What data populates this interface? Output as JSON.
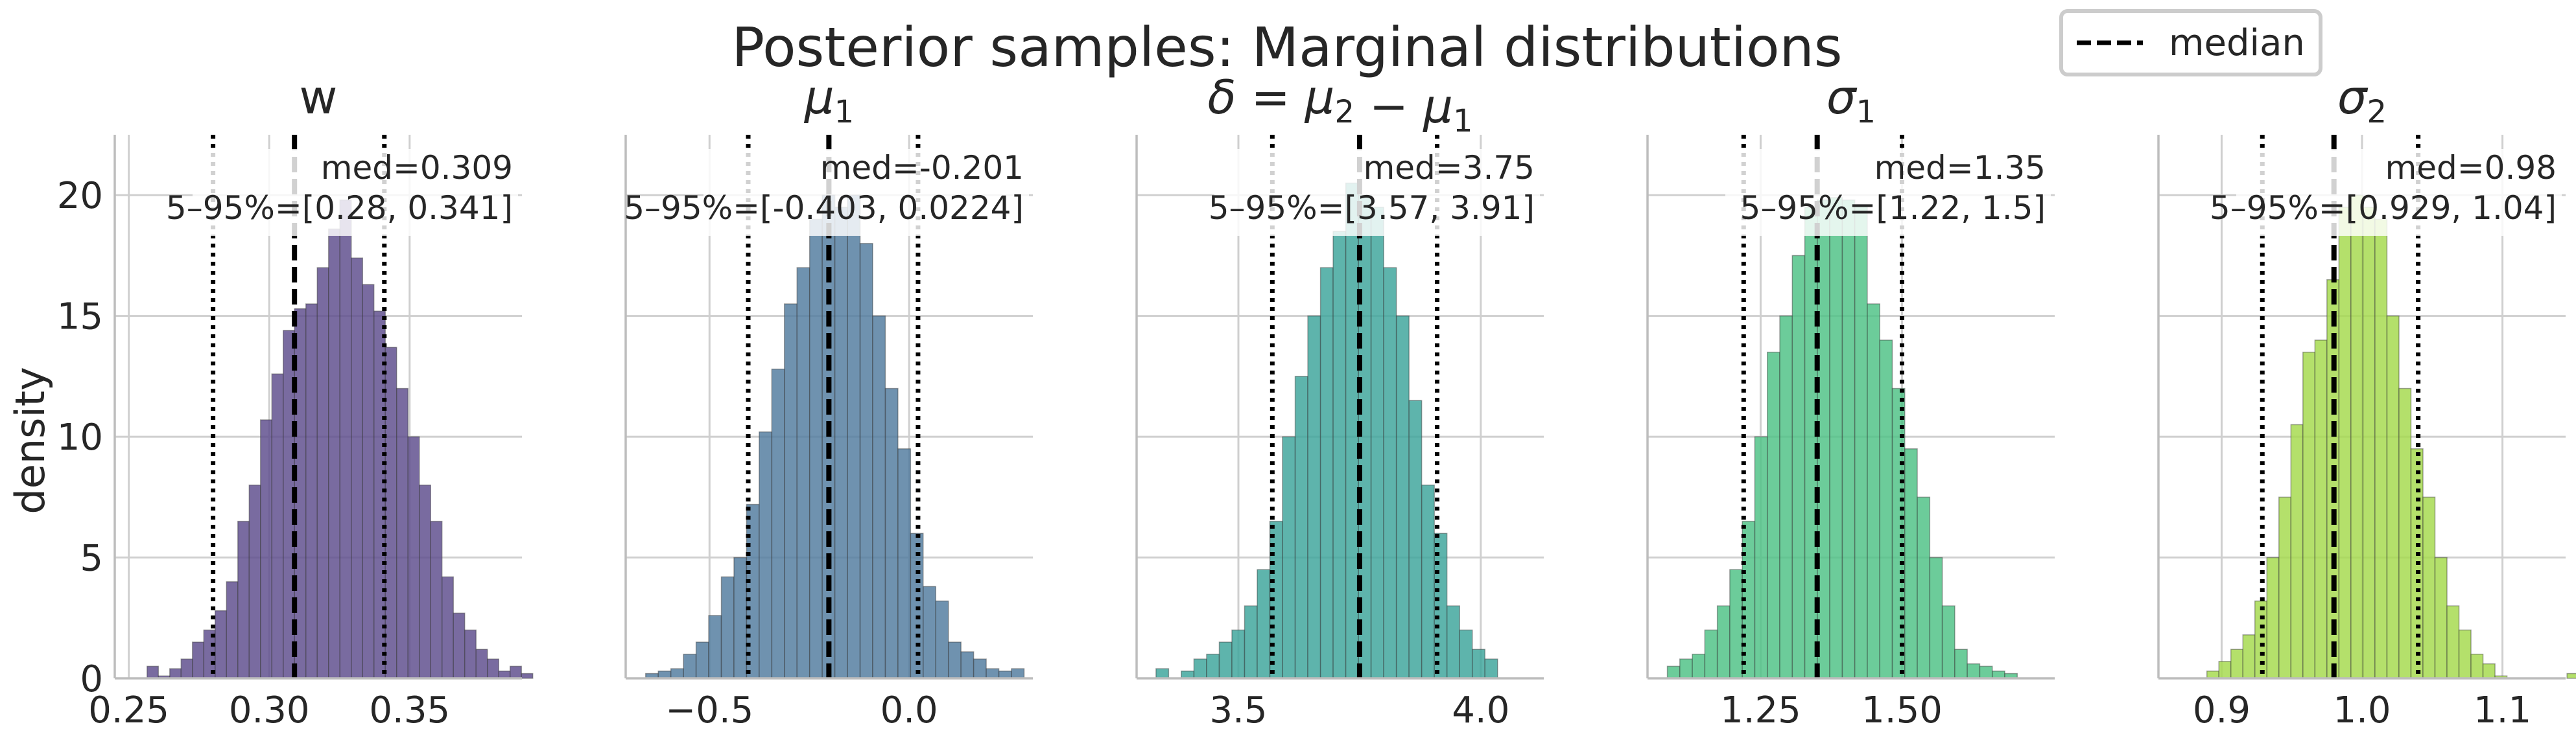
{
  "figure": {
    "title": "Posterior samples: Marginal distributions",
    "ylabel": "density",
    "legend": {
      "label": "median",
      "placement": "top-right"
    }
  },
  "chart_data": [
    {
      "type": "bar",
      "title": "w",
      "color": "#5b4a8b",
      "xlim": [
        0.245,
        0.39
      ],
      "ylim": [
        0,
        22.5
      ],
      "xticks": [
        0.25,
        0.3,
        0.35
      ],
      "xtick_labels": [
        "0.25",
        "0.30",
        "0.35"
      ],
      "yticks": [
        0,
        5,
        10,
        15,
        20
      ],
      "ytick_labels": [
        "0",
        "5",
        "10",
        "15",
        "20"
      ],
      "bin_start": 0.2565,
      "bin_width": 0.00404,
      "values": [
        0.5,
        0.1,
        0.4,
        0.8,
        1.5,
        2.0,
        2.8,
        4.0,
        6.5,
        8.0,
        10.7,
        12.6,
        14.4,
        15.3,
        15.5,
        17.0,
        18.6,
        19.8,
        17.4,
        16.3,
        15.2,
        13.7,
        12.0,
        10.0,
        8.0,
        6.5,
        4.2,
        2.7,
        2.0,
        1.2,
        0.8,
        0.3,
        0.5,
        0.2
      ],
      "median": 0.309,
      "q05": 0.28,
      "q95": 0.341,
      "annot_median": "med=0.309",
      "annot_range": "5–95%=[0.28, 0.341]"
    },
    {
      "type": "bar",
      "title": "μ1",
      "color": "#4f7a9e",
      "xlim": [
        -0.71,
        0.31
      ],
      "ylim": [
        0,
        22.5
      ],
      "xticks": [
        -0.5,
        0.0
      ],
      "xtick_labels": [
        "−0.5",
        "0.0"
      ],
      "yticks": [
        0,
        5,
        10,
        15,
        20
      ],
      "ytick_labels": [],
      "bin_start": -0.66,
      "bin_width": 0.0316,
      "values": [
        0.2,
        0.3,
        0.4,
        1.0,
        1.5,
        2.6,
        4.2,
        5.0,
        7.2,
        10.2,
        12.8,
        15.5,
        17.0,
        19.0,
        20.0,
        19.5,
        20.0,
        18.0,
        15.0,
        12.0,
        9.5,
        6.0,
        3.8,
        3.2,
        1.5,
        1.1,
        0.8,
        0.4,
        0.3,
        0.4
      ],
      "median": -0.201,
      "q05": -0.403,
      "q95": 0.0224,
      "annot_median": "med=-0.201",
      "annot_range": "5–95%=[-0.403, 0.0224]"
    },
    {
      "type": "bar",
      "title": "δ = μ2 − μ1",
      "color": "#3aa39a",
      "xlim": [
        3.29,
        4.13
      ],
      "ylim": [
        0,
        22.5
      ],
      "xticks": [
        3.5,
        4.0
      ],
      "xtick_labels": [
        "3.5",
        "4.0"
      ],
      "yticks": [
        0,
        5,
        10,
        15,
        20
      ],
      "ytick_labels": [],
      "bin_start": 3.33,
      "bin_width": 0.0261,
      "values": [
        0.4,
        0.0,
        0.3,
        0.8,
        1.0,
        1.5,
        2.0,
        3.0,
        4.5,
        6.5,
        10.0,
        12.5,
        15.0,
        17.0,
        18.5,
        20.5,
        20.0,
        19.5,
        17.0,
        15.0,
        11.5,
        8.0,
        6.0,
        3.0,
        2.0,
        1.2,
        0.8
      ],
      "median": 3.75,
      "q05": 3.57,
      "q95": 3.91,
      "annot_median": "med=3.75",
      "annot_range": "5–95%=[3.57, 3.91]"
    },
    {
      "type": "bar",
      "title": "σ1",
      "color": "#4cc184",
      "xlim": [
        1.05,
        1.77
      ],
      "ylim": [
        0,
        22.5
      ],
      "xticks": [
        1.25,
        1.5
      ],
      "xtick_labels": [
        "1.25",
        "1.50"
      ],
      "yticks": [
        0,
        5,
        10,
        15,
        20
      ],
      "ytick_labels": [],
      "bin_start": 1.085,
      "bin_width": 0.0221,
      "values": [
        0.5,
        0.8,
        1.0,
        2.0,
        3.0,
        4.5,
        6.5,
        10.0,
        13.5,
        15.0,
        17.5,
        19.5,
        19.8,
        19.9,
        19.8,
        19.6,
        15.5,
        14.0,
        12.0,
        9.5,
        7.5,
        5.0,
        3.0,
        1.2,
        0.6,
        0.5,
        0.3,
        0.2
      ],
      "median": 1.35,
      "q05": 1.22,
      "q95": 1.5,
      "annot_median": "med=1.35",
      "annot_range": "5–95%=[1.22, 1.5]"
    },
    {
      "type": "bar",
      "title": "σ2",
      "color": "#a3d94a",
      "xlim": [
        0.855,
        1.145
      ],
      "ylim": [
        0,
        22.5
      ],
      "xticks": [
        0.9,
        1.0,
        1.1
      ],
      "xtick_labels": [
        "0.9",
        "1.0",
        "1.1"
      ],
      "yticks": [
        0,
        5,
        10,
        15,
        20
      ],
      "ytick_labels": [],
      "bin_start": 0.8895,
      "bin_width": 0.00855,
      "values": [
        0.3,
        0.7,
        1.2,
        1.8,
        3.2,
        5.0,
        7.5,
        10.5,
        13.5,
        14.0,
        16.5,
        19.5,
        20.0,
        19.5,
        19.0,
        15.0,
        12.0,
        9.5,
        7.5,
        5.0,
        3.0,
        2.0,
        1.0,
        0.6,
        0.1,
        0.0,
        0.0,
        0.0,
        0.0,
        0.0,
        0.2
      ],
      "median": 0.98,
      "q05": 0.929,
      "q95": 1.04,
      "annot_median": "med=0.98",
      "annot_range": "5–95%=[0.929, 1.04]"
    }
  ]
}
